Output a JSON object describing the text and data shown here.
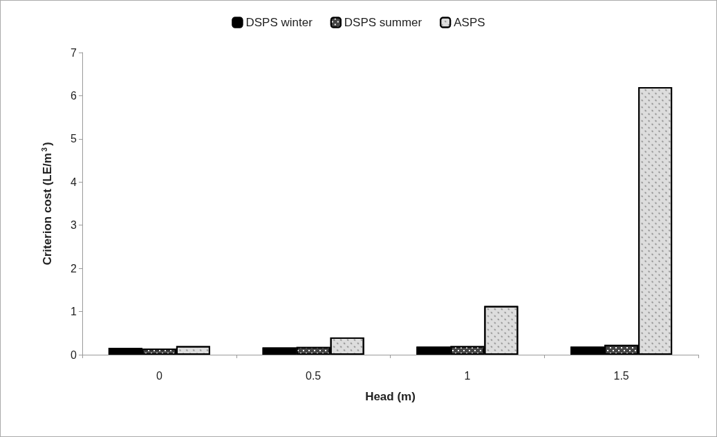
{
  "chart_data": {
    "type": "bar",
    "xlabel": "Head (m)",
    "ylabel": "Criterion cost (LE/m$^{3}$)",
    "categories": [
      "0",
      "0.5",
      "1",
      "1.5"
    ],
    "series": [
      {
        "name": "DSPS winter",
        "color": "#000000",
        "values": [
          0.16,
          0.17,
          0.19,
          0.19
        ]
      },
      {
        "name": "DSPS summer",
        "color": "#444444",
        "values": [
          0.14,
          0.18,
          0.2,
          0.23
        ]
      },
      {
        "name": "ASPS",
        "color": "#dddddd",
        "values": [
          0.2,
          0.4,
          1.13,
          6.2
        ]
      }
    ],
    "ylim": [
      0,
      7
    ],
    "yticks": [
      0,
      1,
      2,
      3,
      4,
      5,
      6,
      7
    ],
    "grid": false,
    "legend": "top"
  }
}
